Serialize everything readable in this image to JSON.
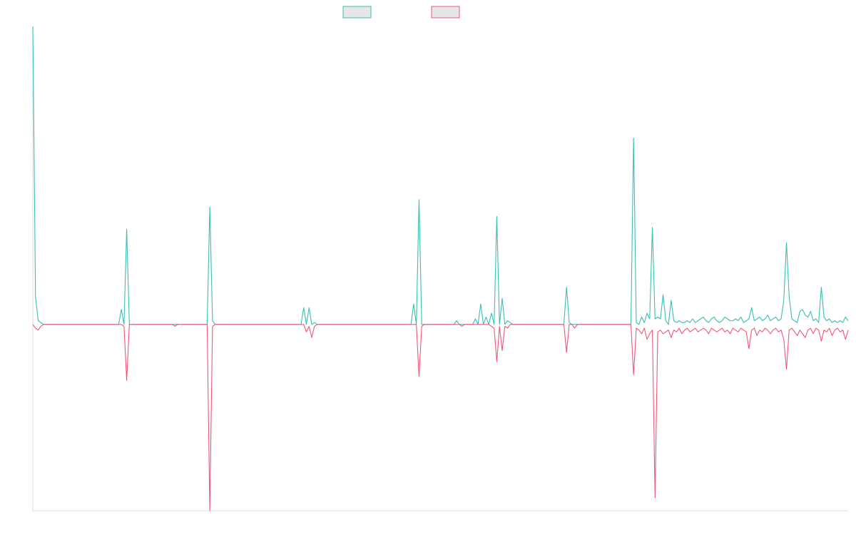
{
  "chart_data": {
    "type": "line",
    "title": "",
    "xlabel": "",
    "ylabel": "",
    "grid": false,
    "legend_placement": "top-center",
    "ylim": [
      -1.0,
      1.6
    ],
    "x_count": 305,
    "colors": {
      "series_a": "#3bbfb2",
      "series_b": "#f0577a",
      "swatch_fill": "#e6e6e6",
      "axis": "#dddddd"
    },
    "series": [
      {
        "name": "",
        "color": "#3bbfb2",
        "baseline": 0,
        "values": [],
        "points": [
          [
            0,
            1.6
          ],
          [
            1,
            0.15
          ],
          [
            2,
            0.02
          ],
          [
            3,
            0.01
          ],
          [
            4,
            0.0
          ],
          [
            32,
            0.0
          ],
          [
            33,
            0.08
          ],
          [
            34,
            0.0
          ],
          [
            35,
            0.51
          ],
          [
            36,
            0.0
          ],
          [
            65,
            0.0
          ],
          [
            66,
            0.63
          ],
          [
            67,
            0.02
          ],
          [
            68,
            0.0
          ],
          [
            100,
            0.0
          ],
          [
            101,
            0.09
          ],
          [
            102,
            0.0
          ],
          [
            103,
            0.09
          ],
          [
            104,
            0.0
          ],
          [
            105,
            0.01
          ],
          [
            106,
            0.0
          ],
          [
            141,
            0.0
          ],
          [
            142,
            0.11
          ],
          [
            143,
            0.0
          ],
          [
            144,
            0.67
          ],
          [
            145,
            0.0
          ],
          [
            157,
            0.0
          ],
          [
            158,
            0.02
          ],
          [
            159,
            0.0
          ],
          [
            164,
            0.0
          ],
          [
            165,
            0.03
          ],
          [
            166,
            0.0
          ],
          [
            167,
            0.11
          ],
          [
            168,
            0.0
          ],
          [
            169,
            0.04
          ],
          [
            170,
            0.0
          ],
          [
            171,
            0.06
          ],
          [
            172,
            0.0
          ],
          [
            173,
            0.58
          ],
          [
            174,
            0.0
          ],
          [
            175,
            0.14
          ],
          [
            176,
            0.0
          ],
          [
            177,
            0.02
          ],
          [
            178,
            0.01
          ],
          [
            179,
            0.0
          ],
          [
            198,
            0.0
          ],
          [
            199,
            0.2
          ],
          [
            200,
            0.01
          ],
          [
            201,
            0.0
          ],
          [
            223,
            0.0
          ],
          [
            224,
            1.0
          ],
          [
            225,
            0.01
          ],
          [
            226,
            0.0
          ],
          [
            227,
            0.04
          ],
          [
            228,
            0.01
          ],
          [
            229,
            0.06
          ],
          [
            230,
            0.03
          ],
          [
            231,
            0.52
          ],
          [
            232,
            0.03
          ],
          [
            233,
            0.04
          ],
          [
            234,
            0.03
          ],
          [
            235,
            0.16
          ],
          [
            236,
            0.02
          ],
          [
            237,
            0.0
          ],
          [
            238,
            0.13
          ],
          [
            239,
            0.02
          ],
          [
            240,
            0.01
          ],
          [
            241,
            0.02
          ],
          [
            242,
            0.01
          ],
          [
            243,
            0.01
          ],
          [
            244,
            0.02
          ],
          [
            245,
            0.01
          ],
          [
            246,
            0.03
          ],
          [
            247,
            0.01
          ],
          [
            248,
            0.02
          ],
          [
            249,
            0.03
          ],
          [
            250,
            0.04
          ],
          [
            251,
            0.02
          ],
          [
            252,
            0.01
          ],
          [
            253,
            0.03
          ],
          [
            254,
            0.04
          ],
          [
            255,
            0.02
          ],
          [
            256,
            0.01
          ],
          [
            257,
            0.02
          ],
          [
            258,
            0.04
          ],
          [
            259,
            0.03
          ],
          [
            260,
            0.02
          ],
          [
            261,
            0.02
          ],
          [
            262,
            0.03
          ],
          [
            263,
            0.02
          ],
          [
            264,
            0.04
          ],
          [
            265,
            0.01
          ],
          [
            266,
            0.02
          ],
          [
            267,
            0.03
          ],
          [
            268,
            0.09
          ],
          [
            269,
            0.02
          ],
          [
            270,
            0.03
          ],
          [
            271,
            0.04
          ],
          [
            272,
            0.02
          ],
          [
            273,
            0.03
          ],
          [
            274,
            0.05
          ],
          [
            275,
            0.02
          ],
          [
            276,
            0.03
          ],
          [
            277,
            0.04
          ],
          [
            278,
            0.02
          ],
          [
            279,
            0.03
          ],
          [
            280,
            0.13
          ],
          [
            281,
            0.44
          ],
          [
            282,
            0.15
          ],
          [
            283,
            0.03
          ],
          [
            284,
            0.02
          ],
          [
            285,
            0.01
          ],
          [
            286,
            0.07
          ],
          [
            287,
            0.08
          ],
          [
            288,
            0.05
          ],
          [
            289,
            0.04
          ],
          [
            290,
            0.07
          ],
          [
            291,
            0.02
          ],
          [
            292,
            0.03
          ],
          [
            293,
            0.01
          ],
          [
            294,
            0.2
          ],
          [
            295,
            0.04
          ],
          [
            296,
            0.02
          ],
          [
            297,
            0.03
          ],
          [
            298,
            0.01
          ],
          [
            299,
            0.02
          ],
          [
            300,
            0.01
          ],
          [
            301,
            0.02
          ],
          [
            302,
            0.01
          ],
          [
            303,
            0.04
          ],
          [
            304,
            0.02
          ]
        ]
      },
      {
        "name": "",
        "color": "#f0577a",
        "baseline": 0,
        "values": [],
        "points": [
          [
            0,
            0.0
          ],
          [
            1,
            -0.02
          ],
          [
            2,
            -0.03
          ],
          [
            3,
            -0.01
          ],
          [
            4,
            0.0
          ],
          [
            33,
            0.0
          ],
          [
            34,
            -0.01
          ],
          [
            35,
            -0.3
          ],
          [
            36,
            0.0
          ],
          [
            52,
            0.0
          ],
          [
            53,
            -0.01
          ],
          [
            54,
            0.0
          ],
          [
            65,
            0.0
          ],
          [
            66,
            -1.0
          ],
          [
            67,
            -0.01
          ],
          [
            68,
            0.0
          ],
          [
            101,
            0.0
          ],
          [
            102,
            -0.04
          ],
          [
            103,
            -0.01
          ],
          [
            104,
            -0.07
          ],
          [
            105,
            -0.01
          ],
          [
            106,
            0.0
          ],
          [
            143,
            0.0
          ],
          [
            144,
            -0.28
          ],
          [
            145,
            -0.01
          ],
          [
            146,
            0.0
          ],
          [
            159,
            0.0
          ],
          [
            160,
            -0.01
          ],
          [
            161,
            0.0
          ],
          [
            170,
            0.0
          ],
          [
            171,
            -0.01
          ],
          [
            172,
            -0.02
          ],
          [
            173,
            -0.2
          ],
          [
            174,
            -0.01
          ],
          [
            175,
            -0.14
          ],
          [
            176,
            -0.01
          ],
          [
            177,
            -0.02
          ],
          [
            178,
            0.0
          ],
          [
            198,
            0.0
          ],
          [
            199,
            -0.15
          ],
          [
            200,
            0.0
          ],
          [
            201,
            0.0
          ],
          [
            202,
            -0.02
          ],
          [
            203,
            0.0
          ],
          [
            223,
            0.0
          ],
          [
            224,
            -0.27
          ],
          [
            225,
            -0.02
          ],
          [
            226,
            -0.03
          ],
          [
            227,
            -0.05
          ],
          [
            228,
            -0.02
          ],
          [
            229,
            -0.08
          ],
          [
            230,
            -0.05
          ],
          [
            231,
            -0.03
          ],
          [
            232,
            -0.93
          ],
          [
            233,
            -0.04
          ],
          [
            234,
            -0.03
          ],
          [
            235,
            -0.05
          ],
          [
            236,
            -0.04
          ],
          [
            237,
            -0.03
          ],
          [
            238,
            -0.07
          ],
          [
            239,
            -0.03
          ],
          [
            240,
            -0.04
          ],
          [
            241,
            -0.02
          ],
          [
            242,
            -0.05
          ],
          [
            243,
            -0.03
          ],
          [
            244,
            -0.02
          ],
          [
            245,
            -0.04
          ],
          [
            246,
            -0.03
          ],
          [
            247,
            -0.02
          ],
          [
            248,
            -0.04
          ],
          [
            249,
            -0.03
          ],
          [
            250,
            -0.02
          ],
          [
            251,
            -0.03
          ],
          [
            252,
            -0.05
          ],
          [
            253,
            -0.02
          ],
          [
            254,
            -0.03
          ],
          [
            255,
            -0.04
          ],
          [
            256,
            -0.03
          ],
          [
            257,
            -0.02
          ],
          [
            258,
            -0.04
          ],
          [
            259,
            -0.03
          ],
          [
            260,
            -0.05
          ],
          [
            261,
            -0.02
          ],
          [
            262,
            -0.03
          ],
          [
            263,
            -0.04
          ],
          [
            264,
            -0.02
          ],
          [
            265,
            -0.03
          ],
          [
            266,
            -0.04
          ],
          [
            267,
            -0.13
          ],
          [
            268,
            -0.03
          ],
          [
            269,
            -0.02
          ],
          [
            270,
            -0.06
          ],
          [
            271,
            -0.03
          ],
          [
            272,
            -0.04
          ],
          [
            273,
            -0.02
          ],
          [
            274,
            -0.03
          ],
          [
            275,
            -0.05
          ],
          [
            276,
            -0.03
          ],
          [
            277,
            -0.02
          ],
          [
            278,
            -0.04
          ],
          [
            279,
            -0.03
          ],
          [
            280,
            -0.08
          ],
          [
            281,
            -0.24
          ],
          [
            282,
            -0.03
          ],
          [
            283,
            -0.02
          ],
          [
            284,
            -0.04
          ],
          [
            285,
            -0.06
          ],
          [
            286,
            -0.03
          ],
          [
            287,
            -0.05
          ],
          [
            288,
            -0.07
          ],
          [
            289,
            -0.03
          ],
          [
            290,
            -0.02
          ],
          [
            291,
            -0.05
          ],
          [
            292,
            -0.02
          ],
          [
            293,
            -0.03
          ],
          [
            294,
            -0.09
          ],
          [
            295,
            -0.03
          ],
          [
            296,
            -0.04
          ],
          [
            297,
            -0.02
          ],
          [
            298,
            -0.06
          ],
          [
            299,
            -0.03
          ],
          [
            300,
            -0.02
          ],
          [
            301,
            -0.04
          ],
          [
            302,
            -0.03
          ],
          [
            303,
            -0.08
          ],
          [
            304,
            -0.03
          ]
        ]
      }
    ]
  }
}
